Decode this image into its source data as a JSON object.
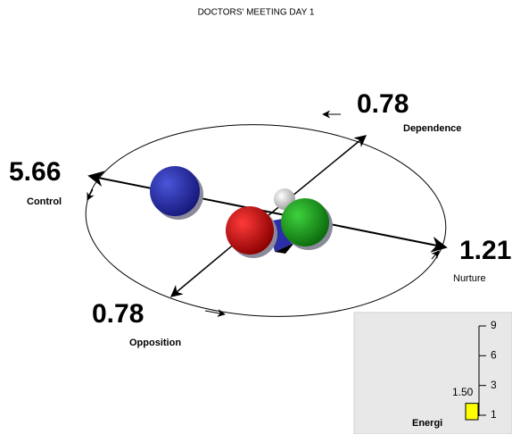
{
  "title": "DOCTORS' MEETING DAY 1",
  "axes": [
    {
      "label": "Dependence",
      "value": 0.78
    },
    {
      "label": "Control",
      "value": 5.66
    },
    {
      "label": "Nurture",
      "value": 1.21
    },
    {
      "label": "Opposition",
      "value": 0.78
    }
  ],
  "energy": {
    "label": "Energi",
    "value": 1.5,
    "value_label": "1.50",
    "ticks": [
      1,
      3,
      6,
      9
    ]
  }
}
